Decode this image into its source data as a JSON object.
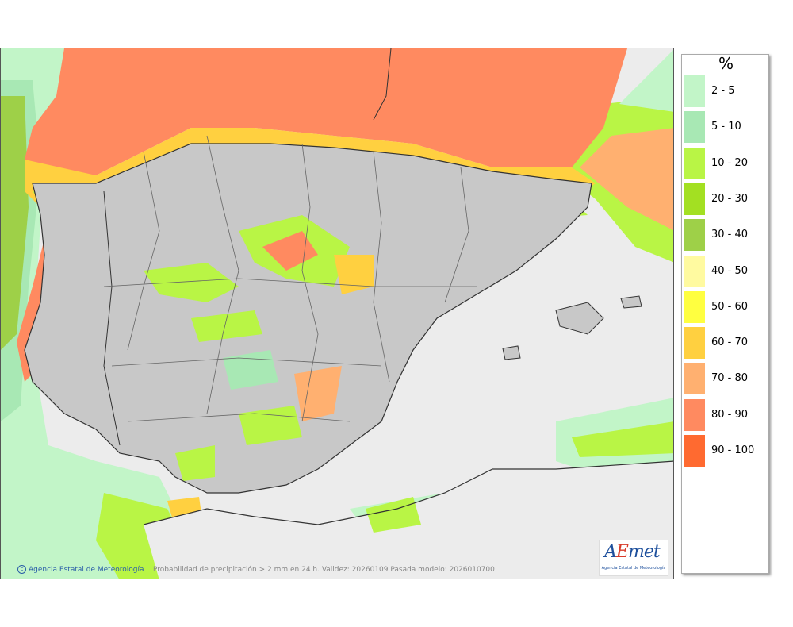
{
  "map": {
    "caption": "Probabilidad de precipitación > 2 mm en 24 h. Validez: 20260109 Pasada modelo: 2026010700",
    "credit": "Agencia Estatal de Meteorología",
    "logo_text": "AEmet",
    "logo_subtitle": "Agencia Estatal de Meteorología"
  },
  "legend": {
    "title": "%",
    "items": [
      {
        "label": "2 - 5",
        "color": "#c2f5c8"
      },
      {
        "label": "5 - 10",
        "color": "#a8e8b4"
      },
      {
        "label": "10 - 20",
        "color": "#b9f545"
      },
      {
        "label": "20 - 30",
        "color": "#a3e022"
      },
      {
        "label": "30 - 40",
        "color": "#9ed048"
      },
      {
        "label": "40 - 50",
        "color": "#fffaa0"
      },
      {
        "label": "50 - 60",
        "color": "#ffff40"
      },
      {
        "label": "60 - 70",
        "color": "#ffd040"
      },
      {
        "label": "70 - 80",
        "color": "#ffb070"
      },
      {
        "label": "80 - 90",
        "color": "#ff8a60"
      },
      {
        "label": "90 - 100",
        "color": "#ff6a30"
      }
    ]
  },
  "colors": {
    "sea_no_data": "#ececec",
    "land_base": "#c8c8c8",
    "border_line": "#333333"
  }
}
